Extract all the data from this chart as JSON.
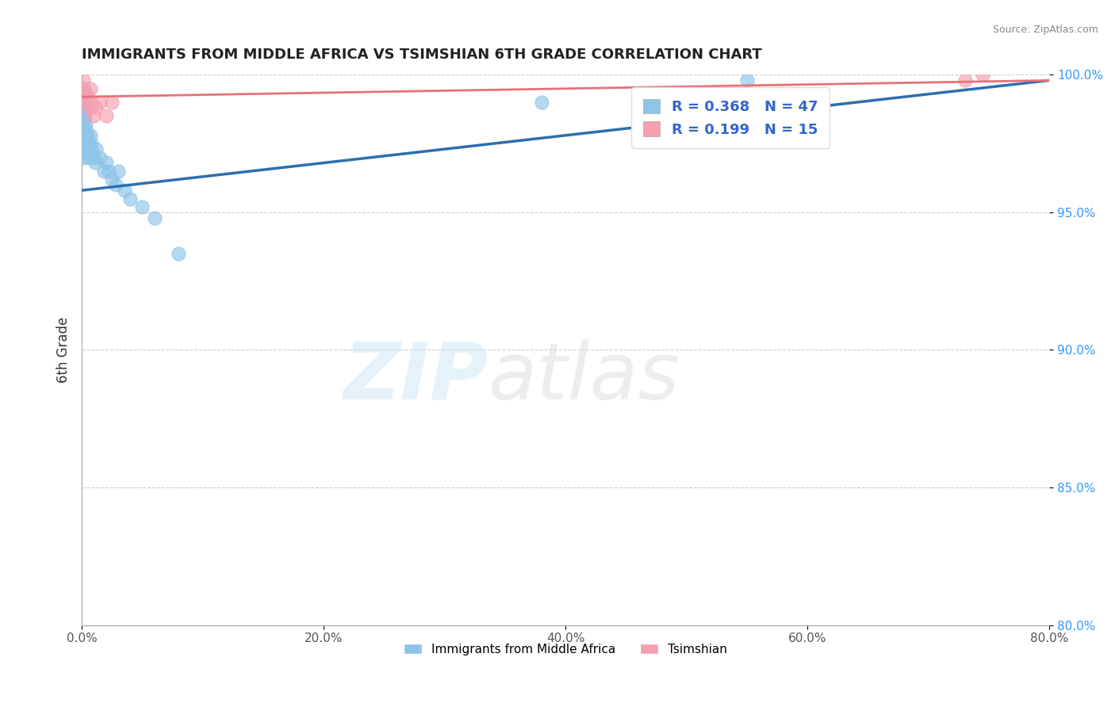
{
  "title": "IMMIGRANTS FROM MIDDLE AFRICA VS TSIMSHIAN 6TH GRADE CORRELATION CHART",
  "source": "Source: ZipAtlas.com",
  "xlabel": "",
  "ylabel": "6th Grade",
  "xlim": [
    0.0,
    80.0
  ],
  "ylim": [
    80.0,
    100.0
  ],
  "xticks": [
    0.0,
    20.0,
    40.0,
    60.0,
    80.0
  ],
  "yticks": [
    80.0,
    85.0,
    90.0,
    95.0,
    100.0
  ],
  "blue_R": 0.368,
  "blue_N": 47,
  "pink_R": 0.199,
  "pink_N": 15,
  "blue_color": "#8ec4e8",
  "pink_color": "#f4a0b0",
  "blue_line_color": "#2c6fad",
  "pink_line_color": "#e8707a",
  "blue_points_x": [
    0.05,
    0.05,
    0.05,
    0.08,
    0.08,
    0.08,
    0.1,
    0.1,
    0.12,
    0.12,
    0.15,
    0.15,
    0.18,
    0.2,
    0.2,
    0.22,
    0.25,
    0.3,
    0.3,
    0.35,
    0.4,
    0.45,
    0.5,
    0.55,
    0.6,
    0.6,
    0.65,
    0.7,
    0.8,
    0.9,
    1.0,
    1.1,
    1.2,
    1.5,
    1.8,
    2.0,
    2.2,
    2.5,
    2.8,
    3.0,
    3.5,
    4.0,
    5.0,
    6.0,
    8.0,
    38.0,
    55.0
  ],
  "blue_points_y": [
    97.8,
    97.5,
    97.2,
    97.5,
    97.3,
    97.0,
    98.5,
    98.2,
    98.8,
    98.5,
    99.5,
    99.2,
    99.0,
    99.3,
    98.8,
    99.0,
    98.5,
    98.0,
    97.8,
    98.2,
    97.5,
    97.8,
    97.5,
    97.2,
    97.5,
    97.0,
    97.3,
    97.8,
    97.5,
    97.2,
    97.0,
    96.8,
    97.3,
    97.0,
    96.5,
    96.8,
    96.5,
    96.2,
    96.0,
    96.5,
    95.8,
    95.5,
    95.2,
    94.8,
    93.5,
    99.0,
    99.8
  ],
  "pink_points_x": [
    0.1,
    0.2,
    0.3,
    0.4,
    0.5,
    0.6,
    0.7,
    0.8,
    1.0,
    1.2,
    1.5,
    2.0,
    2.5,
    73.0,
    74.5
  ],
  "pink_points_y": [
    99.8,
    99.5,
    99.3,
    99.0,
    99.2,
    98.8,
    99.5,
    99.0,
    98.5,
    98.8,
    99.0,
    98.5,
    99.0,
    99.8,
    100.0
  ],
  "blue_trend_x": [
    0.0,
    80.0
  ],
  "blue_trend_y": [
    95.8,
    99.8
  ],
  "pink_trend_x": [
    0.0,
    80.0
  ],
  "pink_trend_y": [
    99.2,
    99.8
  ]
}
